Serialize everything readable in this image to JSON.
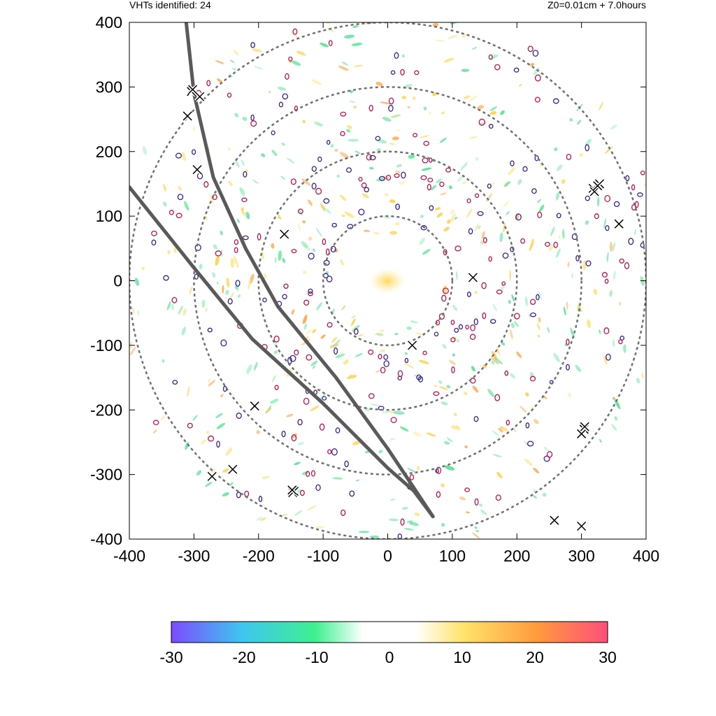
{
  "header": {
    "left": "VHTs identified: 24",
    "right": "Z0=0.01cm  + 7.0hours"
  },
  "chart_data": {
    "type": "heatmap",
    "title": "",
    "xlabel": "",
    "ylabel": "",
    "xlim": [
      -400,
      400
    ],
    "ylim": [
      -400,
      400
    ],
    "xticks": [
      -400,
      -300,
      -200,
      -100,
      0,
      100,
      200,
      300,
      400
    ],
    "yticks": [
      400,
      300,
      200,
      100,
      0,
      -100,
      -200,
      -300,
      -400
    ],
    "range_rings": [
      100,
      200,
      300,
      400
    ],
    "tracks": [
      {
        "points": [
          [
            -312,
            400
          ],
          [
            -300,
            290
          ],
          [
            -270,
            160
          ],
          [
            -220,
            50
          ],
          [
            -170,
            -40
          ],
          [
            -80,
            -150
          ],
          [
            0,
            -260
          ],
          [
            40,
            -320
          ],
          [
            70,
            -365
          ]
        ]
      },
      {
        "points": [
          [
            -400,
            145
          ],
          [
            -300,
            20
          ],
          [
            -210,
            -90
          ],
          [
            -100,
            -190
          ],
          [
            0,
            -290
          ],
          [
            40,
            -325
          ],
          [
            70,
            -365
          ]
        ]
      }
    ],
    "vht_markers": [
      [
        -304,
        293
      ],
      [
        -291,
        285
      ],
      [
        -310,
        255
      ],
      [
        -295,
        172
      ],
      [
        -160,
        72
      ],
      [
        132,
        5
      ],
      [
        38,
        -100
      ],
      [
        -206,
        -194
      ],
      [
        -272,
        -303
      ],
      [
        -240,
        -292
      ],
      [
        -147,
        -328
      ],
      [
        -145,
        -326
      ],
      [
        318,
        143
      ],
      [
        328,
        150
      ],
      [
        320,
        138
      ],
      [
        358,
        88
      ],
      [
        304,
        -230
      ],
      [
        300,
        -237
      ],
      [
        258,
        -371
      ],
      [
        300,
        -380
      ],
      [
        305,
        -226
      ],
      [
        -302,
        296
      ],
      [
        325,
        147
      ],
      [
        -148,
        -324
      ]
    ],
    "colorbar": {
      "min": -30,
      "max": 30,
      "ticks": [
        -30,
        -20,
        -10,
        0,
        10,
        20,
        30
      ],
      "colors": [
        "#7b4bff",
        "#3fc5f0",
        "#3ff08f",
        "#ffffff",
        "#ffe36a",
        "#ff9a3c",
        "#ff4f7a"
      ]
    }
  }
}
